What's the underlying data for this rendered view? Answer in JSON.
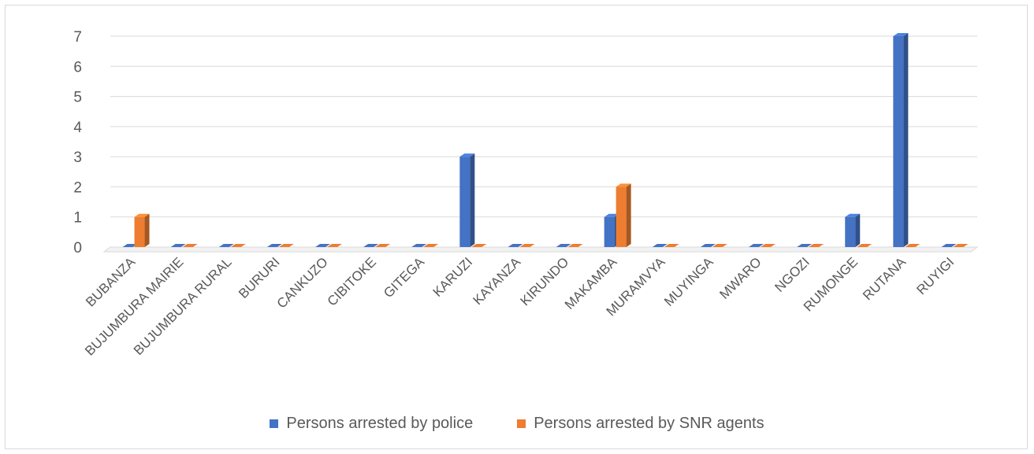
{
  "chart_data": {
    "type": "bar",
    "categories": [
      "BUBANZA",
      "BUJUMBURA MAIRIE",
      "BUJUMBURA RURAL",
      "BURURI",
      "CANKUZO",
      "CIBITOKE",
      "GITEGA",
      "KARUZI",
      "KAYANZA",
      "KIRUNDO",
      "MAKAMBA",
      "MURAMVYA",
      "MUYINGA",
      "MWARO",
      "NGOZI",
      "RUMONGE",
      "RUTANA",
      "RUYIGI"
    ],
    "series": [
      {
        "name": "Persons arrested by police",
        "color": "#4472c4",
        "values": [
          0,
          0,
          0,
          0,
          0,
          0,
          0,
          3,
          0,
          0,
          1,
          0,
          0,
          0,
          0,
          1,
          7,
          0
        ]
      },
      {
        "name": "Persons arrested by SNR agents",
        "color": "#ed7d31",
        "values": [
          1,
          0,
          0,
          0,
          0,
          0,
          0,
          0,
          0,
          0,
          2,
          0,
          0,
          0,
          0,
          0,
          0,
          0
        ]
      }
    ],
    "yticks": [
      "0",
      "1",
      "2",
      "3",
      "4",
      "5",
      "6",
      "7"
    ],
    "ylim": [
      0,
      7
    ],
    "grid": true,
    "legend_position": "bottom",
    "title": "",
    "xlabel": "",
    "ylabel": ""
  }
}
